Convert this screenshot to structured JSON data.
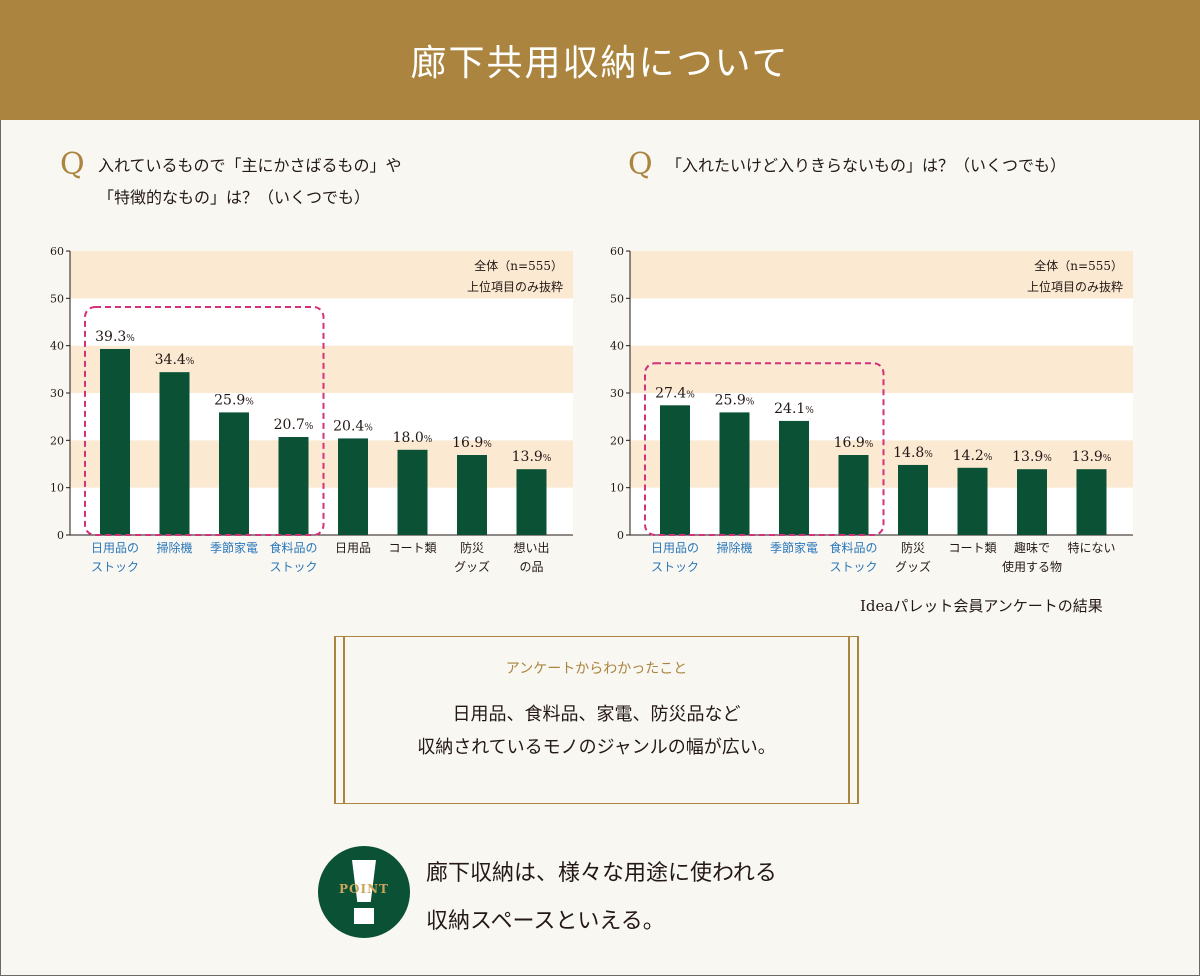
{
  "header": {
    "title": "廊下共用収納について"
  },
  "questions": [
    {
      "mark": "Q",
      "lines": [
        "入れているもので「主にかさばるもの」や",
        "「特徴的なもの」は？（いくつでも）"
      ]
    },
    {
      "mark": "Q",
      "lines": [
        "「入れたいけど入りきらないもの」は？（いくつでも）"
      ]
    }
  ],
  "chart_data": [
    {
      "type": "bar",
      "title": "",
      "note_lines": [
        "全体（n=555）",
        "上位項目のみ抜粋"
      ],
      "ylim": [
        0,
        60
      ],
      "yticks": [
        0,
        10,
        20,
        30,
        40,
        50,
        60
      ],
      "categories": [
        [
          "日用品の",
          "ストック"
        ],
        [
          "掃除機"
        ],
        [
          "季節家電"
        ],
        [
          "食料品の",
          "ストック"
        ],
        [
          "日用品"
        ],
        [
          "コート類"
        ],
        [
          "防災",
          "グッズ"
        ],
        [
          "想い出",
          "の品"
        ]
      ],
      "values": [
        39.3,
        34.4,
        25.9,
        20.7,
        20.4,
        18.0,
        16.9,
        13.9
      ],
      "value_labels": [
        "39.3",
        "34.4",
        "25.9",
        "20.7",
        "20.4",
        "18.0",
        "16.9",
        "13.9"
      ],
      "unit": "%",
      "highlight_count": 4,
      "bar_color": "#0a5135",
      "highlight_label_color": "#2b77b9",
      "band_color": "#fbe9d2",
      "highlight_box_color": "#d3317c"
    },
    {
      "type": "bar",
      "title": "",
      "note_lines": [
        "全体（n=555）",
        "上位項目のみ抜粋"
      ],
      "ylim": [
        0,
        60
      ],
      "yticks": [
        0,
        10,
        20,
        30,
        40,
        50,
        60
      ],
      "categories": [
        [
          "日用品の",
          "ストック"
        ],
        [
          "掃除機"
        ],
        [
          "季節家電"
        ],
        [
          "食料品の",
          "ストック"
        ],
        [
          "防災",
          "グッズ"
        ],
        [
          "コート類"
        ],
        [
          "趣味で",
          "使用する物"
        ],
        [
          "特にない"
        ]
      ],
      "values": [
        27.4,
        25.9,
        24.1,
        16.9,
        14.8,
        14.2,
        13.9,
        13.9
      ],
      "value_labels": [
        "27.4",
        "25.9",
        "24.1",
        "16.9",
        "14.8",
        "14.2",
        "13.9",
        "13.9"
      ],
      "unit": "%",
      "highlight_count": 4,
      "bar_color": "#0a5135",
      "highlight_label_color": "#2b77b9",
      "band_color": "#fbe9d2",
      "highlight_box_color": "#d3317c"
    }
  ],
  "source": "Ideaパレット会員アンケートの結果",
  "findings": {
    "title": "アンケートからわかったこと",
    "lines": [
      "日用品、食料品、家電、防災品など",
      "収納されているモノのジャンルの幅が広い。"
    ]
  },
  "point": {
    "badge": "POINT",
    "lines": [
      "廊下収納は、様々な用途に使われる",
      "収納スペースといえる。"
    ]
  }
}
